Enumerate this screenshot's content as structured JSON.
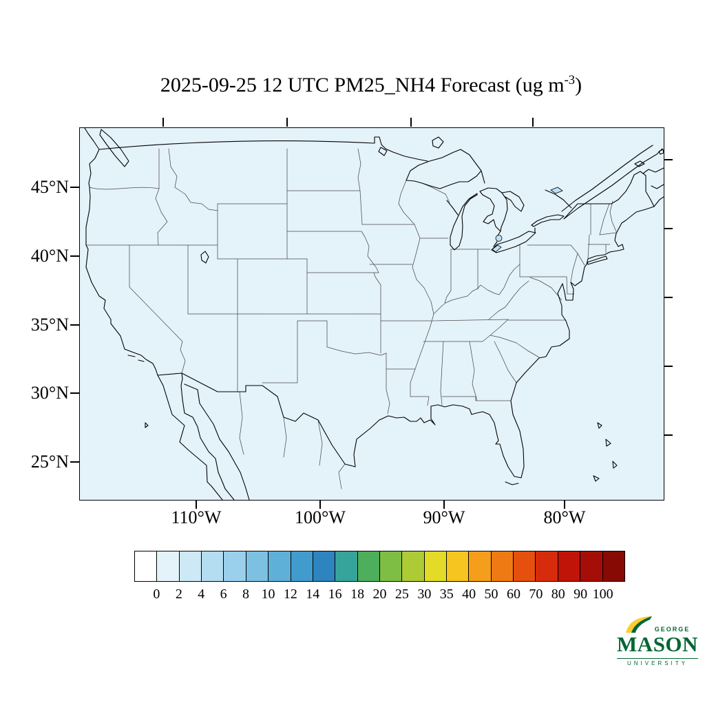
{
  "title": {
    "prefix": "2025-09-25 12 UTC PM25_NH4 Forecast (ug m",
    "superscript": "-3",
    "suffix": ")"
  },
  "map": {
    "fill_color": "#E4F2FA",
    "lake_tint_color": "#BFE1F5",
    "border_color": "#000000",
    "state_line_color": "#4a4a4a",
    "lat_labels": [
      "45°N",
      "40°N",
      "35°N",
      "30°N",
      "25°N"
    ],
    "lon_labels": [
      "110°W",
      "100°W",
      "90°W",
      "80°W"
    ]
  },
  "colorbar": {
    "tick_labels": [
      "0",
      "2",
      "4",
      "6",
      "8",
      "10",
      "12",
      "14",
      "16",
      "18",
      "20",
      "25",
      "30",
      "35",
      "40",
      "50",
      "60",
      "70",
      "80",
      "90",
      "100"
    ],
    "colors": [
      "#FFFFFF",
      "#E4F2FA",
      "#CEE9F6",
      "#B5DDF1",
      "#9AD0EB",
      "#7DC1E2",
      "#5FB0D9",
      "#419CCD",
      "#2E84BE",
      "#36A49A",
      "#4DAF5B",
      "#7FBE45",
      "#ADCB35",
      "#E3DB28",
      "#F6C51F",
      "#F49E1B",
      "#EF7A13",
      "#E5500E",
      "#D72C0C",
      "#C11409",
      "#A50D07",
      "#870A05"
    ]
  },
  "logo": {
    "top_word": "GEORGE",
    "main_word": "MASON",
    "bottom_word": "UNIVERSITY",
    "green": "#006633",
    "gold": "#FFCC33"
  },
  "chart_data": {
    "type": "heatmap",
    "title": "2025-09-25 12 UTC PM25_NH4 Forecast (ug m-3)",
    "variable": "PM25_NH4",
    "units": "ug m-3",
    "valid_time": "2025-09-25 12 UTC",
    "region": "Continental United States",
    "x_ticks": [
      "110°W",
      "100°W",
      "90°W",
      "80°W"
    ],
    "y_ticks": [
      "45°N",
      "40°N",
      "35°N",
      "30°N",
      "25°N"
    ],
    "color_levels": [
      0,
      2,
      4,
      6,
      8,
      10,
      12,
      14,
      16,
      18,
      20,
      25,
      30,
      35,
      40,
      50,
      60,
      70,
      80,
      90,
      100
    ],
    "palette": [
      "#FFFFFF",
      "#E4F2FA",
      "#CEE9F6",
      "#B5DDF1",
      "#9AD0EB",
      "#7DC1E2",
      "#5FB0D9",
      "#419CCD",
      "#2E84BE",
      "#36A49A",
      "#4DAF5B",
      "#7FBE45",
      "#ADCB35",
      "#E3DB28",
      "#F6C51F",
      "#F49E1B",
      "#EF7A13",
      "#E5500E",
      "#D72C0C",
      "#C11409",
      "#A50D07",
      "#870A05"
    ],
    "field_summary": "PM2.5 ammonium concentration is in the lowest bin (0-2 ug m-3) across the entire CONUS domain; map appears uniformly pale blue"
  }
}
